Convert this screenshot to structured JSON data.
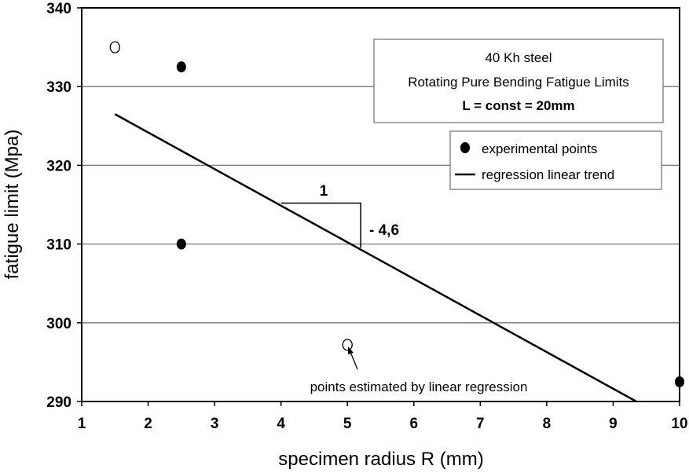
{
  "chart_data": {
    "type": "scatter",
    "xlabel": "specimen radius  R (mm)",
    "ylabel": "fatigue limit (Mpa)",
    "xlim": [
      1,
      10
    ],
    "ylim": [
      290,
      340
    ],
    "x_ticks": [
      "1",
      "2",
      "3",
      "4",
      "5",
      "6",
      "7",
      "8",
      "9",
      "10"
    ],
    "y_ticks": [
      "290",
      "300",
      "310",
      "320",
      "330",
      "340"
    ],
    "grid": "horizontal",
    "title_box": {
      "line1": "40 Kh steel",
      "line2": "Rotating Pure Bending Fatigue Limits",
      "line3": "L = const = 20mm"
    },
    "legend": {
      "placement": "right",
      "items": [
        "experimental points",
        "regression linear trend"
      ]
    },
    "series": [
      {
        "name": "experimental points",
        "marker": "filled-circle",
        "points": [
          {
            "x": 2.5,
            "y": 332.5
          },
          {
            "x": 2.5,
            "y": 310
          },
          {
            "x": 10,
            "y": 292.5
          }
        ]
      },
      {
        "name": "points estimated by linear regression",
        "marker": "open-circle",
        "points": [
          {
            "x": 1.5,
            "y": 335
          },
          {
            "x": 5,
            "y": 297.2
          }
        ]
      },
      {
        "name": "regression linear trend",
        "type": "line",
        "points": [
          {
            "x": 1.5,
            "y": 326.5
          },
          {
            "x": 9.35,
            "y": 290
          }
        ]
      }
    ],
    "annotations": {
      "slope_run": "1",
      "slope_rise": "- 4,6",
      "estimated_note": "points estimated by linear regression",
      "slope_triangle": {
        "x1": 4,
        "x2": 5.2,
        "y1": 315.2,
        "y2": 309.5
      }
    },
    "colors": {
      "line": "#000000",
      "grid": "#777777"
    }
  }
}
